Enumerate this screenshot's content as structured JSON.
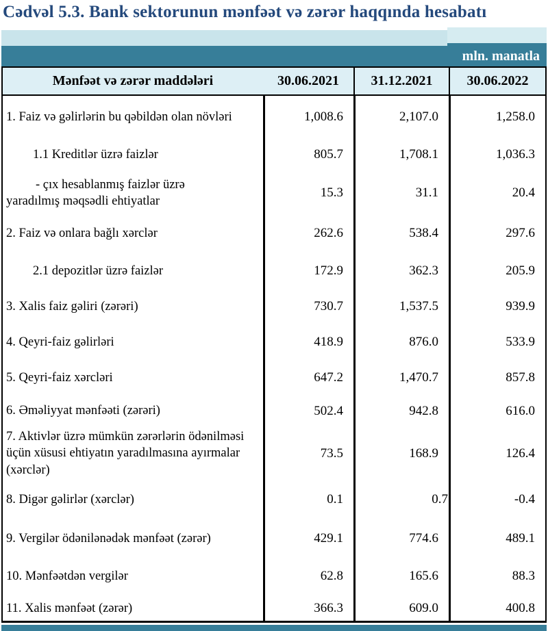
{
  "page": {
    "title": "Cədvəl 5.3. Bank sektorunun mənfəət və zərər haqqında hesabatı",
    "unit_note": "mln. manatla"
  },
  "colors": {
    "title_blue": "#24497c",
    "teal": "#377e99",
    "band_light": "#c9e4eb",
    "band_light_right": "#d6ecf1",
    "header_bg": "#ddeff5"
  },
  "table": {
    "header": [
      "Mənfəət və zərər maddələri",
      "30.06.2021",
      "31.12.2021",
      "30.06.2022"
    ],
    "rows": [
      {
        "lines": [
          {
            "text": "1. Faiz və gəlirlərin bu qəbildən olan növləri",
            "indent": 0
          }
        ],
        "values": [
          "1,008.6",
          "2,107.0",
          "1,258.0"
        ]
      },
      {
        "lines": [
          {
            "text": "1.1 Kreditlər üzrə faizlər",
            "indent": 1
          }
        ],
        "values": [
          "805.7",
          "1,708.1",
          "1,036.3"
        ]
      },
      {
        "lines": [
          {
            "text": "-  çıx hesablanmış faizlər üzrə",
            "indent": 2
          },
          {
            "text": "yaradılmış məqsədli ehtiyatlar",
            "indent": 0
          }
        ],
        "values": [
          "15.3",
          "31.1",
          "20.4"
        ]
      },
      {
        "lines": [
          {
            "text": "2. Faiz və onlara bağlı xərclər",
            "indent": 0
          }
        ],
        "values": [
          "262.6",
          "538.4",
          "297.6"
        ]
      },
      {
        "lines": [
          {
            "text": "2.1 depozitlər üzrə faizlər",
            "indent": 1
          }
        ],
        "values": [
          "172.9",
          "362.3",
          "205.9"
        ]
      },
      {
        "lines": [
          {
            "text": "3. Xalis faiz gəliri (zərəri)",
            "indent": 0
          }
        ],
        "values": [
          "730.7",
          "1,537.5",
          "939.9"
        ]
      },
      {
        "lines": [
          {
            "text": "4. Qeyri-faiz gəlirləri",
            "indent": 0
          }
        ],
        "values": [
          "418.9",
          "876.0",
          "533.9"
        ]
      },
      {
        "lines": [
          {
            "text": "5. Qeyri-faiz xərcləri",
            "indent": 0
          }
        ],
        "values": [
          "647.2",
          "1,470.7",
          "857.8"
        ]
      },
      {
        "lines": [
          {
            "text": "6. Əməliyyat mənfəəti (zərəri)",
            "indent": 0
          }
        ],
        "values": [
          "502.4",
          "942.8",
          "616.0"
        ]
      },
      {
        "lines": [
          {
            "text": "7. Aktivlər üzrə mümkün zərərlərin ödənilməsi üçün xüsusi ehtiyatın yaradılmasına ayırmalar (xərclər)",
            "indent": 0
          }
        ],
        "values": [
          "73.5",
          "168.9",
          "126.4"
        ]
      },
      {
        "lines": [
          {
            "text": "8. Digər gəlirlər (xərclər)",
            "indent": 0
          }
        ],
        "values": [
          "0.1",
          "0.7",
          "-0.4"
        ],
        "flush": [
          1
        ]
      },
      {
        "lines": [
          {
            "text": "9. Vergilər ödənilənədək mənfəət (zərər)",
            "indent": 0
          }
        ],
        "values": [
          "429.1",
          "774.6",
          "489.1"
        ]
      },
      {
        "lines": [
          {
            "text": "10. Mənfəətdən vergilər",
            "indent": 0
          }
        ],
        "values": [
          "62.8",
          "165.6",
          "88.3"
        ]
      },
      {
        "lines": [
          {
            "text": "11. Xalis mənfəət (zərər)",
            "indent": 0
          }
        ],
        "values": [
          "366.3",
          "609.0",
          "400.8"
        ]
      }
    ]
  }
}
